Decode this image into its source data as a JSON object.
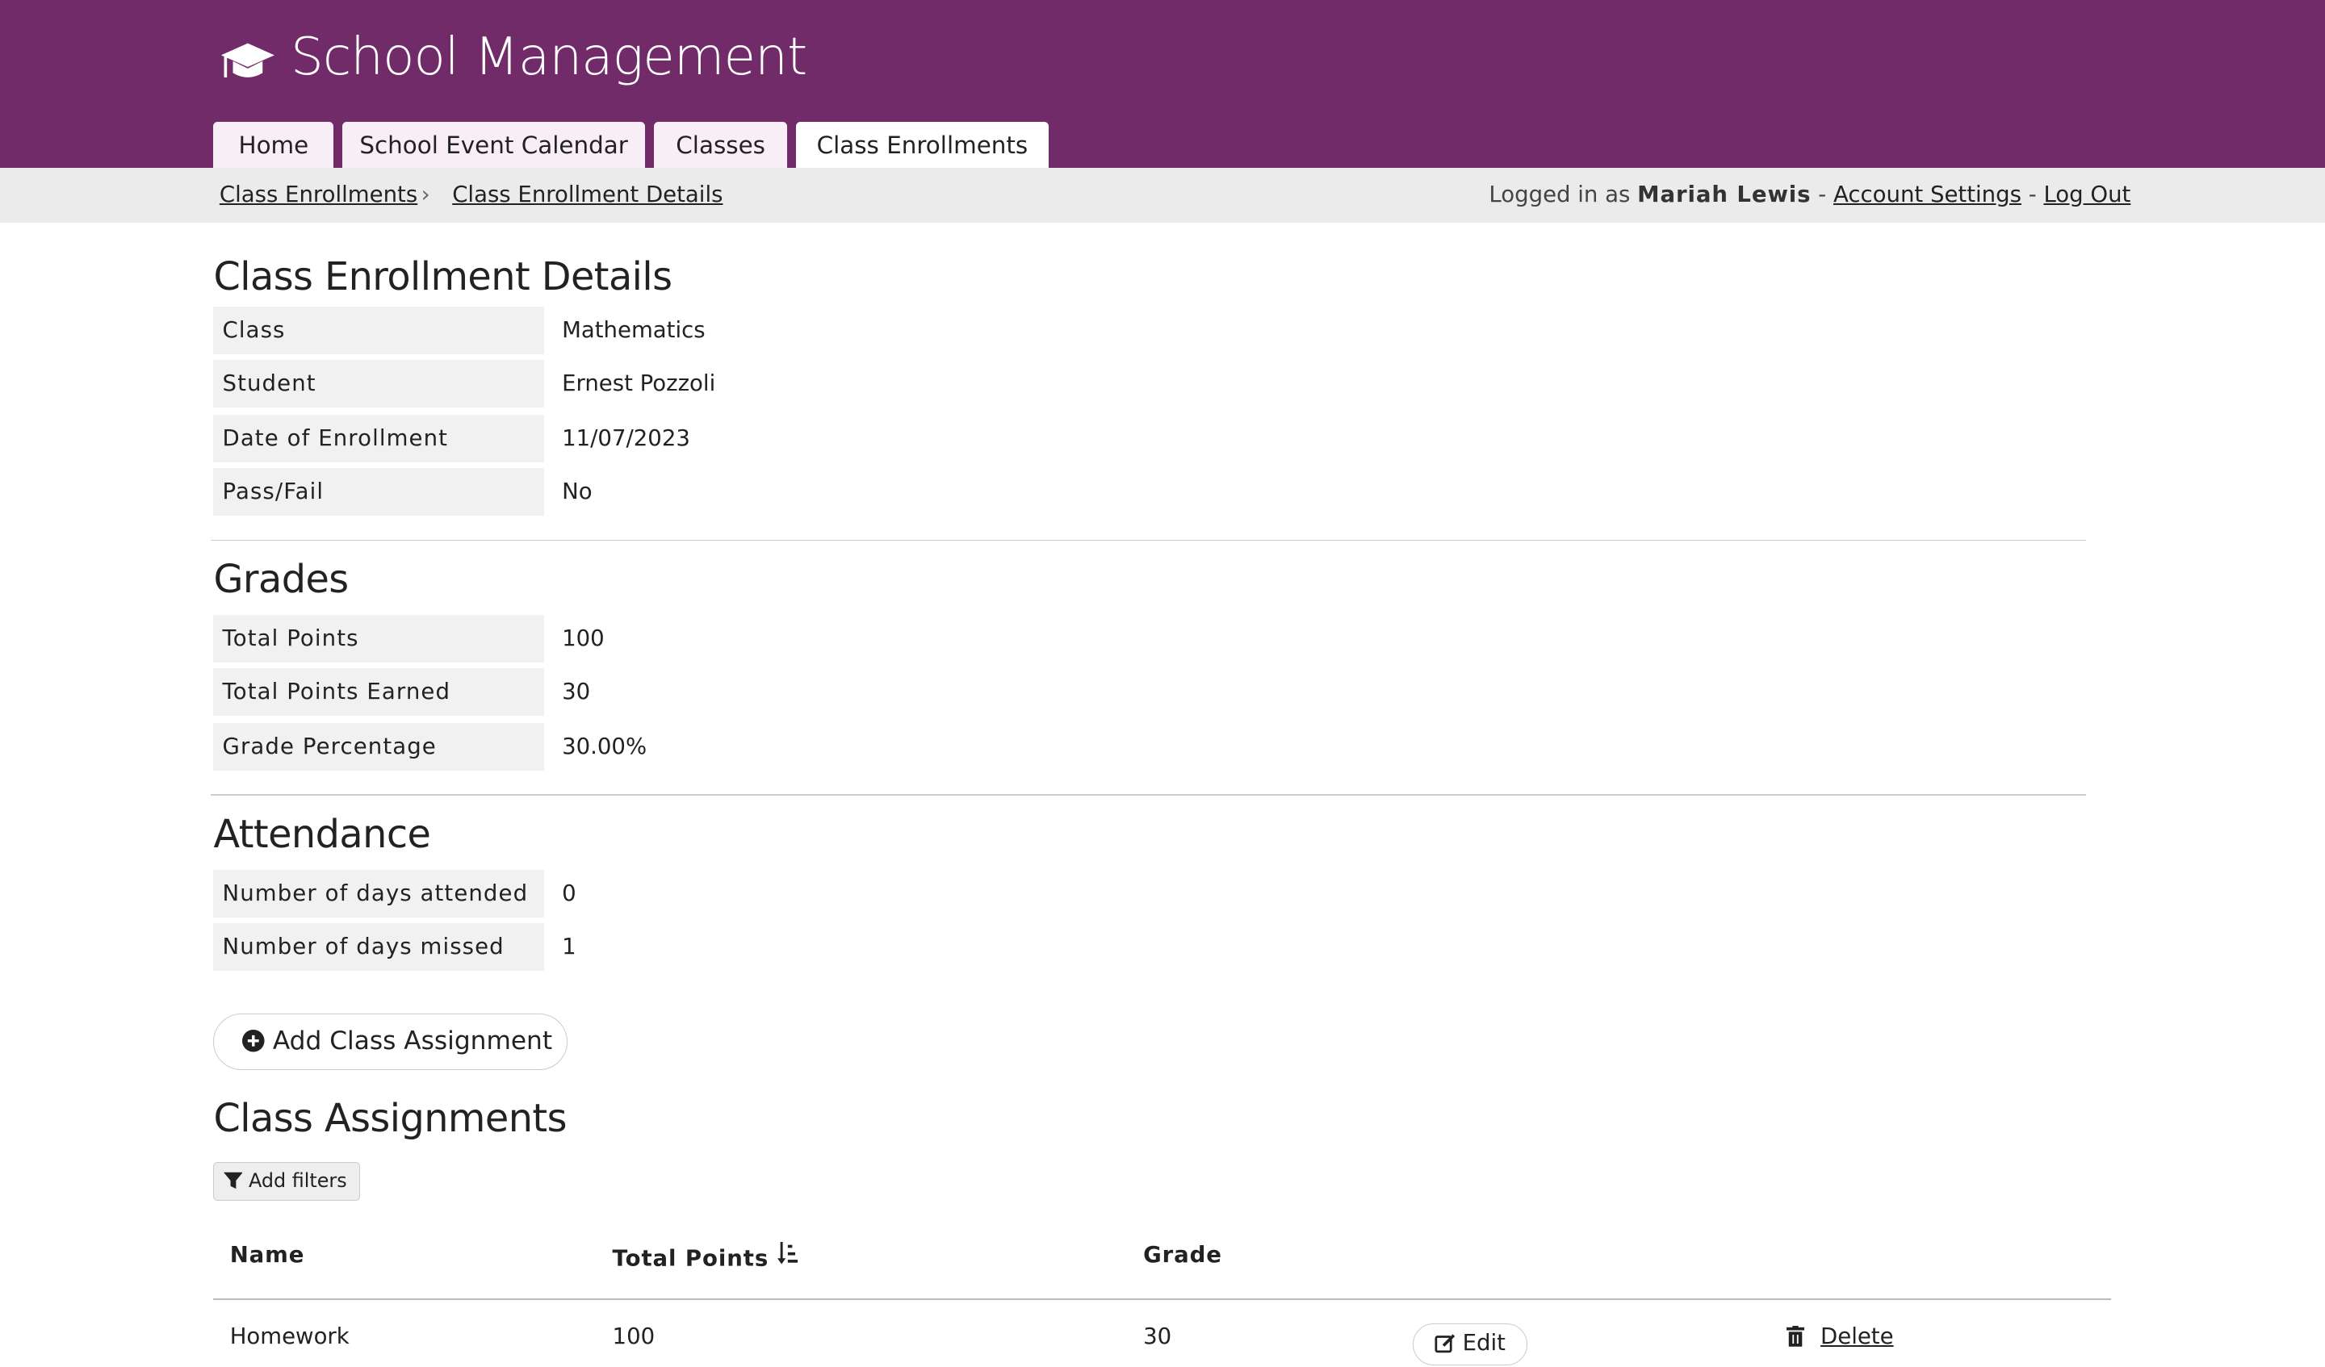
{
  "header": {
    "title": "School Management",
    "icon": "graduation-cap-icon",
    "color": "#722b69"
  },
  "tabs": [
    {
      "label": "Home"
    },
    {
      "label": "School Event Calendar"
    },
    {
      "label": "Classes"
    },
    {
      "label": "Class Enrollments",
      "active": true
    }
  ],
  "breadcrumb": {
    "items": [
      "Class Enrollments",
      "Class Enrollment Details"
    ],
    "separator": "›"
  },
  "user": {
    "prefix": "Logged in as",
    "name": "Mariah Lewis",
    "sep": "-",
    "account_settings": "Account Settings",
    "log_out": "Log Out"
  },
  "details": {
    "title": "Class Enrollment Details",
    "rows": [
      {
        "label": "Class",
        "value": "Mathematics"
      },
      {
        "label": "Student",
        "value": "Ernest Pozzoli"
      },
      {
        "label": "Date of Enrollment",
        "value": "11/07/2023"
      },
      {
        "label": "Pass/Fail",
        "value": "No"
      }
    ]
  },
  "grades": {
    "title": "Grades",
    "rows": [
      {
        "label": "Total Points",
        "value": "100"
      },
      {
        "label": "Total Points Earned",
        "value": "30"
      },
      {
        "label": "Grade Percentage",
        "value": "30.00%"
      }
    ]
  },
  "attendance": {
    "title": "Attendance",
    "rows": [
      {
        "label": "Number of days attended",
        "value": "0"
      },
      {
        "label": "Number of days missed",
        "value": "1"
      }
    ]
  },
  "add_button": "Add Class Assignment",
  "assignments": {
    "title": "Class Assignments",
    "filters_label": "Add filters",
    "columns": [
      "Name",
      "Total Points",
      "Grade"
    ],
    "rows": [
      {
        "name": "Homework",
        "total_points": "100",
        "grade": "30",
        "edit": "Edit",
        "delete": "Delete"
      }
    ]
  }
}
